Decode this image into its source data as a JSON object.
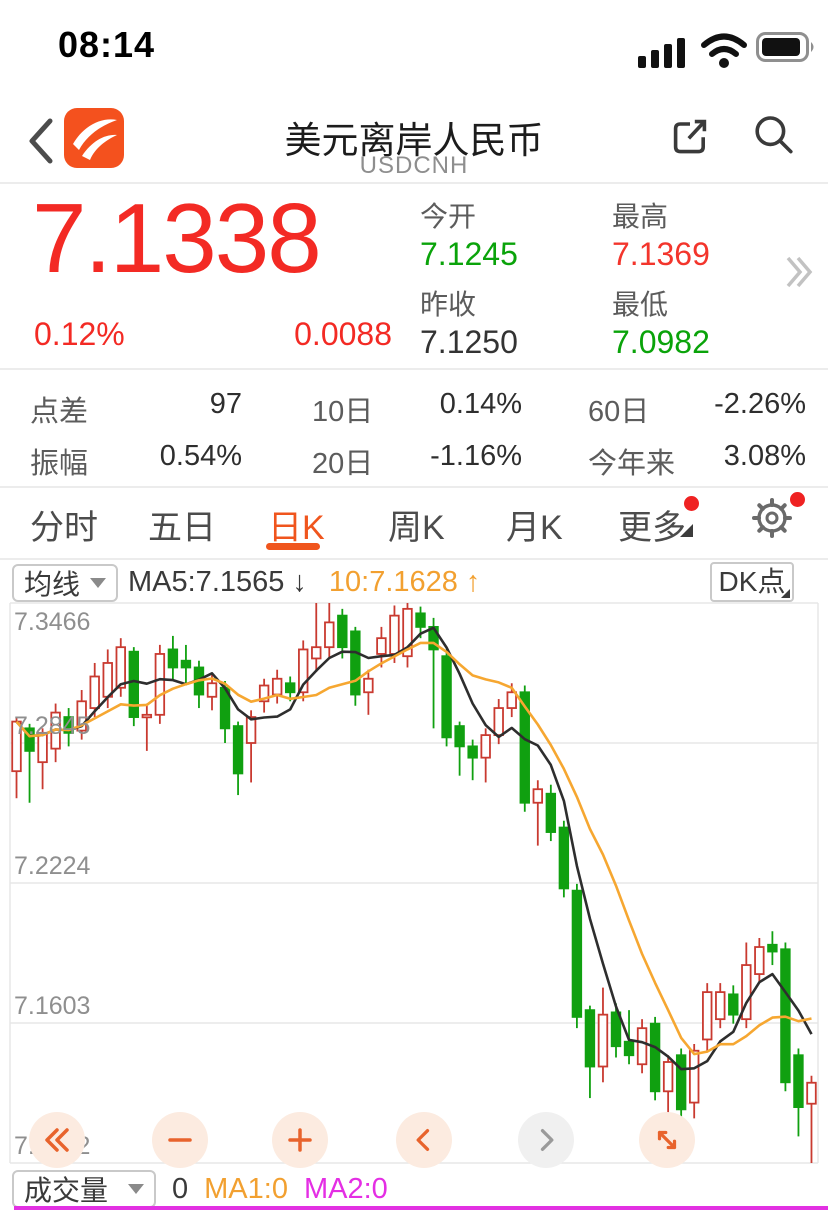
{
  "status_bar": {
    "time": "08:14"
  },
  "header": {
    "title": "美元离岸人民币",
    "subtitle": "USDCNH"
  },
  "quote": {
    "price": "7.1338",
    "change_percent": "0.12%",
    "change_value": "0.0088",
    "cells": [
      {
        "label": "今开",
        "value": "7.1245",
        "color": "green"
      },
      {
        "label": "最高",
        "value": "7.1369",
        "color": "red"
      },
      {
        "label": "昨收",
        "value": "7.1250",
        "color": "dark"
      },
      {
        "label": "最低",
        "value": "7.0982",
        "color": "green"
      }
    ]
  },
  "stats": [
    {
      "label": "点差",
      "value": "97"
    },
    {
      "label": "10日",
      "value": "0.14%"
    },
    {
      "label": "60日",
      "value": "-2.26%"
    },
    {
      "label": "振幅",
      "value": "0.54%"
    },
    {
      "label": "20日",
      "value": "-1.16%"
    },
    {
      "label": "今年来",
      "value": "3.08%"
    }
  ],
  "tabs": {
    "items": [
      "分时",
      "五日",
      "日K",
      "周K",
      "月K",
      "更多"
    ],
    "active": "日K"
  },
  "ma_bar": {
    "selector_label": "均线",
    "ma5_label": "MA5:7.1565",
    "ma5_arrow": "↓",
    "ma10_label": "10:7.1628",
    "ma10_arrow": "↑",
    "dk_label": "DK点"
  },
  "volume_bar": {
    "selector_label": "成交量",
    "value": "0",
    "ma1_label": "MA1:0",
    "ma2_label": "MA2:0"
  },
  "colors": {
    "accent_orange": "#f0551d",
    "text_red": "#f32a24",
    "text_green": "#0aa30a",
    "ma10_orange": "#f2a030",
    "volume_magenta": "#e231e2"
  },
  "chart_data": {
    "type": "candlestick",
    "period": "日K",
    "symbol": "USDCNH",
    "y_ticks": [
      "7.3466",
      "7.2845",
      "7.2224",
      "7.1603",
      "7.0982"
    ],
    "y_range": [
      7.0982,
      7.3466
    ],
    "grid": true,
    "up_color": "#c93a30",
    "down_color": "#10a010",
    "ma5_color": "#2e2e2e",
    "ma10_color": "#f6a731",
    "ma_windows": [
      5,
      10
    ],
    "candles_format": [
      "open",
      "close",
      "low",
      "high"
    ],
    "candles": [
      [
        7.272,
        7.294,
        7.26,
        7.296
      ],
      [
        7.291,
        7.281,
        7.258,
        7.293
      ],
      [
        7.276,
        7.289,
        7.264,
        7.291
      ],
      [
        7.282,
        7.298,
        7.276,
        7.302
      ],
      [
        7.296,
        7.289,
        7.283,
        7.3
      ],
      [
        7.29,
        7.303,
        7.286,
        7.308
      ],
      [
        7.3,
        7.314,
        7.296,
        7.32
      ],
      [
        7.305,
        7.32,
        7.3,
        7.326
      ],
      [
        7.309,
        7.327,
        7.305,
        7.331
      ],
      [
        7.325,
        7.296,
        7.292,
        7.327
      ],
      [
        7.297,
        7.297,
        7.281,
        7.302
      ],
      [
        7.297,
        7.324,
        7.293,
        7.328
      ],
      [
        7.326,
        7.318,
        7.312,
        7.332
      ],
      [
        7.321,
        7.318,
        7.31,
        7.328
      ],
      [
        7.318,
        7.306,
        7.3,
        7.321
      ],
      [
        7.305,
        7.311,
        7.299,
        7.315
      ],
      [
        7.309,
        7.291,
        7.2845,
        7.312
      ],
      [
        7.292,
        7.271,
        7.2614,
        7.294
      ],
      [
        7.2845,
        7.296,
        7.267,
        7.299
      ],
      [
        7.303,
        7.31,
        7.298,
        7.313
      ],
      [
        7.306,
        7.313,
        7.302,
        7.317
      ],
      [
        7.311,
        7.307,
        7.303,
        7.314
      ],
      [
        7.307,
        7.326,
        7.303,
        7.33
      ],
      [
        7.322,
        7.327,
        7.316,
        7.3466
      ],
      [
        7.327,
        7.338,
        7.322,
        7.3466
      ],
      [
        7.341,
        7.327,
        7.322,
        7.344
      ],
      [
        7.334,
        7.306,
        7.301,
        7.336
      ],
      [
        7.307,
        7.313,
        7.297,
        7.317
      ],
      [
        7.324,
        7.331,
        7.318,
        7.336
      ],
      [
        7.324,
        7.341,
        7.32,
        7.3455
      ],
      [
        7.323,
        7.344,
        7.318,
        7.3466
      ],
      [
        7.342,
        7.336,
        7.331,
        7.345
      ],
      [
        7.336,
        7.326,
        7.291,
        7.34
      ],
      [
        7.323,
        7.287,
        7.283,
        7.326
      ],
      [
        7.292,
        7.283,
        7.27,
        7.294
      ],
      [
        7.283,
        7.278,
        7.268,
        7.286
      ],
      [
        7.278,
        7.288,
        7.267,
        7.291
      ],
      [
        7.288,
        7.3,
        7.284,
        7.304
      ],
      [
        7.3,
        7.307,
        7.296,
        7.311
      ],
      [
        7.307,
        7.258,
        7.254,
        7.31
      ],
      [
        7.258,
        7.264,
        7.239,
        7.268
      ],
      [
        7.262,
        7.245,
        7.241,
        7.266
      ],
      [
        7.247,
        7.22,
        7.216,
        7.25
      ],
      [
        7.219,
        7.163,
        7.158,
        7.222
      ],
      [
        7.166,
        7.141,
        7.127,
        7.168
      ],
      [
        7.141,
        7.164,
        7.134,
        7.176
      ],
      [
        7.165,
        7.15,
        7.145,
        7.169
      ],
      [
        7.152,
        7.146,
        7.142,
        7.166
      ],
      [
        7.142,
        7.158,
        7.138,
        7.162
      ],
      [
        7.16,
        7.13,
        7.126,
        7.163
      ],
      [
        7.13,
        7.143,
        7.108,
        7.146
      ],
      [
        7.146,
        7.122,
        7.117,
        7.149
      ],
      [
        7.125,
        7.148,
        7.118,
        7.151
      ],
      [
        7.153,
        7.174,
        7.148,
        7.178
      ],
      [
        7.162,
        7.174,
        7.158,
        7.178
      ],
      [
        7.173,
        7.164,
        7.16,
        7.177
      ],
      [
        7.162,
        7.186,
        7.158,
        7.196
      ],
      [
        7.182,
        7.194,
        7.178,
        7.198
      ],
      [
        7.195,
        7.192,
        7.186,
        7.201
      ],
      [
        7.193,
        7.134,
        7.13,
        7.196
      ],
      [
        7.146,
        7.123,
        7.11,
        7.149
      ],
      [
        7.1245,
        7.1338,
        7.0982,
        7.1369
      ]
    ]
  }
}
